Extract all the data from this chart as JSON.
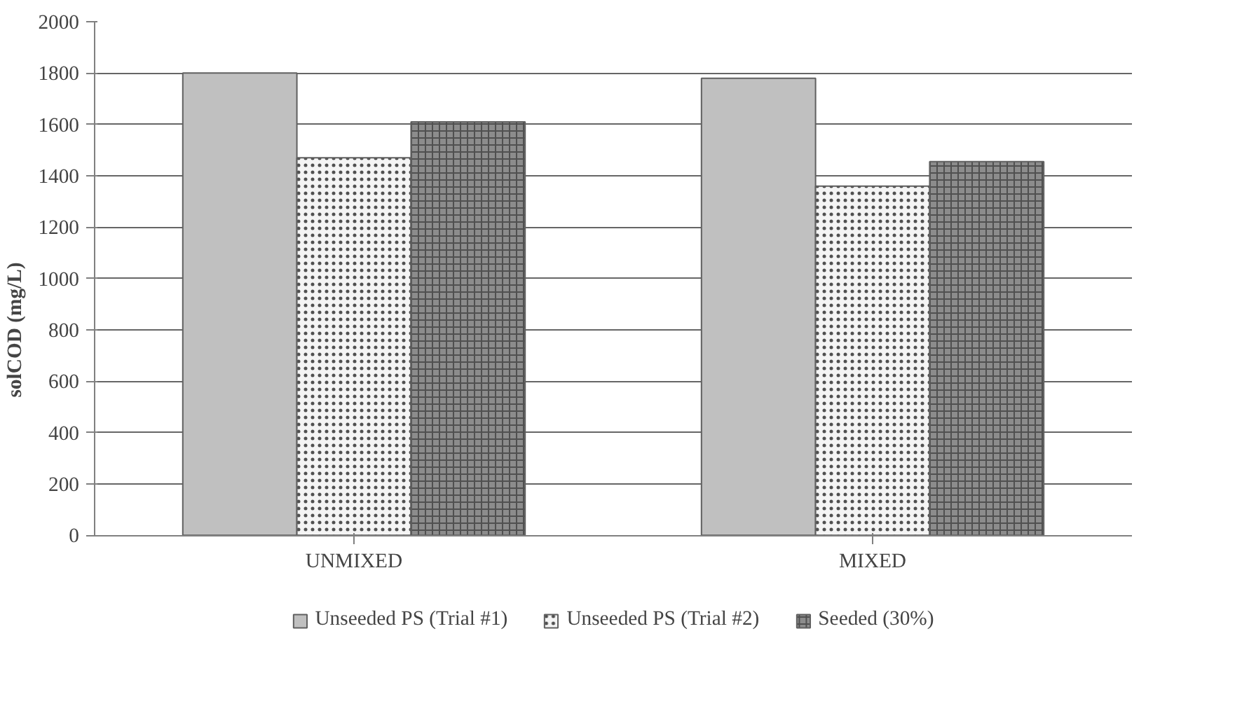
{
  "chart_data": {
    "type": "bar",
    "ylabel": "solCOD (mg/L)",
    "categories": [
      "UNMIXED",
      "MIXED"
    ],
    "series": [
      {
        "name": "Unseeded PS (Trial #1)",
        "color": "#c0c0c0",
        "values": [
          1800,
          1780
        ]
      },
      {
        "name": "Unseeded PS (Trial #2)",
        "color": "#f4f4f4",
        "values": [
          1470,
          1360
        ]
      },
      {
        "name": "Seeded (30%)",
        "color": "#8c8c8c",
        "values": [
          1610,
          1455
        ]
      }
    ],
    "ylim": [
      0,
      2000
    ],
    "yticks": [
      0,
      200,
      400,
      600,
      800,
      1000,
      1200,
      1400,
      1600,
      1800,
      2000
    ],
    "grid": "y",
    "legend": "bottom"
  }
}
